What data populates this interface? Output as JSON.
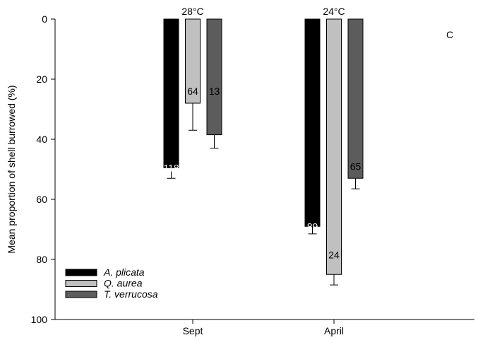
{
  "chart_data": {
    "type": "bar",
    "panel_letter": "C",
    "ylabel": "Mean proportion of shell burrowed (%)",
    "xlabel": "",
    "ylim": [
      0,
      100
    ],
    "y_inverted": true,
    "y_ticks": [
      0,
      20,
      40,
      60,
      80,
      100
    ],
    "categories": [
      "Sept",
      "April"
    ],
    "category_annotations": [
      "28°C",
      "24°C"
    ],
    "legend_position": "bottom-left",
    "grid": false,
    "series": [
      {
        "name": "A. plicata",
        "color": "#000000",
        "label_color": "#ffffff",
        "values": [
          49.5,
          69
        ],
        "error": [
          3.5,
          2.5
        ],
        "sample_sizes": [
          "118",
          "89"
        ],
        "label_values": [
          49.5,
          69
        ]
      },
      {
        "name": "Q. aurea",
        "color": "#c0c0c0",
        "label_color": "#000000",
        "values": [
          28,
          85
        ],
        "error": [
          9,
          3.5
        ],
        "sample_sizes": [
          "64",
          "24"
        ],
        "label_values": [
          24,
          78.5
        ]
      },
      {
        "name": "T. verrucosa",
        "color": "#5c5c5c",
        "label_color": "#000000",
        "values": [
          38.5,
          53
        ],
        "error": [
          4.5,
          3.5
        ],
        "sample_sizes": [
          "13",
          "65"
        ],
        "label_values": [
          24,
          49
        ]
      }
    ]
  }
}
